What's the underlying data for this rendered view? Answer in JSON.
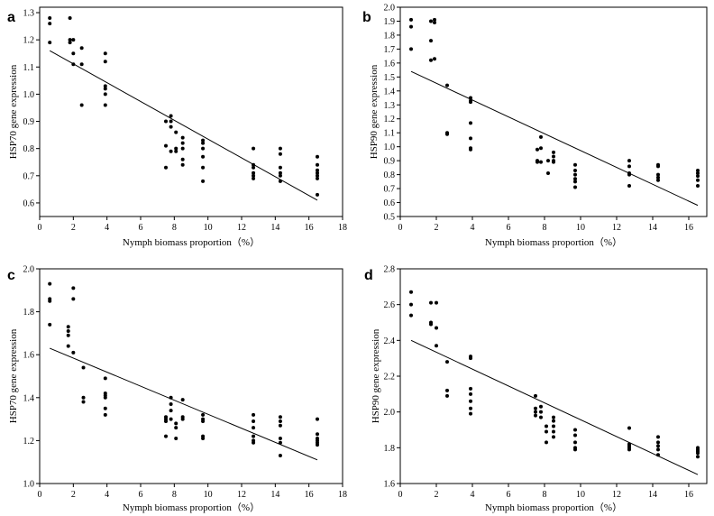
{
  "chart_data": [
    {
      "panel": "a",
      "type": "scatter",
      "xlabel": "Nymph biomass proportion（%）",
      "ylabel": "HSP70 gene expression",
      "xlim": [
        0,
        18
      ],
      "ylim": [
        0.55,
        1.32
      ],
      "xticks": [
        0,
        2,
        4,
        6,
        8,
        10,
        12,
        14,
        16,
        18
      ],
      "yticks": [
        0.6,
        0.7,
        0.8,
        0.9,
        1.0,
        1.1,
        1.2,
        1.3
      ],
      "ytick_labels": [
        "0.6",
        "0.7",
        "0.8",
        "0.9",
        "1.0",
        "1.1",
        "1.2",
        "1.3"
      ],
      "fit_line": [
        [
          0.6,
          1.16
        ],
        [
          16.5,
          0.61
        ]
      ],
      "points": [
        [
          0.6,
          1.28
        ],
        [
          0.6,
          1.26
        ],
        [
          0.6,
          1.19
        ],
        [
          1.8,
          1.28
        ],
        [
          1.8,
          1.2
        ],
        [
          1.8,
          1.19
        ],
        [
          2.0,
          1.2
        ],
        [
          2.0,
          1.15
        ],
        [
          2.0,
          1.11
        ],
        [
          2.5,
          1.17
        ],
        [
          2.5,
          1.11
        ],
        [
          2.5,
          0.96
        ],
        [
          3.9,
          1.15
        ],
        [
          3.9,
          1.12
        ],
        [
          3.9,
          1.03
        ],
        [
          3.9,
          1.02
        ],
        [
          3.9,
          1.0
        ],
        [
          3.9,
          0.96
        ],
        [
          7.5,
          0.9
        ],
        [
          7.5,
          0.81
        ],
        [
          7.5,
          0.73
        ],
        [
          7.8,
          0.92
        ],
        [
          7.8,
          0.9
        ],
        [
          7.8,
          0.88
        ],
        [
          7.8,
          0.79
        ],
        [
          8.1,
          0.86
        ],
        [
          8.1,
          0.8
        ],
        [
          8.1,
          0.79
        ],
        [
          8.5,
          0.84
        ],
        [
          8.5,
          0.82
        ],
        [
          8.5,
          0.8
        ],
        [
          8.5,
          0.76
        ],
        [
          8.5,
          0.74
        ],
        [
          9.7,
          0.83
        ],
        [
          9.7,
          0.82
        ],
        [
          9.7,
          0.8
        ],
        [
          9.7,
          0.77
        ],
        [
          9.7,
          0.73
        ],
        [
          9.7,
          0.68
        ],
        [
          12.7,
          0.8
        ],
        [
          12.7,
          0.74
        ],
        [
          12.7,
          0.73
        ],
        [
          12.7,
          0.71
        ],
        [
          12.7,
          0.7
        ],
        [
          12.7,
          0.69
        ],
        [
          14.3,
          0.8
        ],
        [
          14.3,
          0.78
        ],
        [
          14.3,
          0.73
        ],
        [
          14.3,
          0.71
        ],
        [
          14.3,
          0.7
        ],
        [
          14.3,
          0.68
        ],
        [
          16.5,
          0.77
        ],
        [
          16.5,
          0.74
        ],
        [
          16.5,
          0.72
        ],
        [
          16.5,
          0.71
        ],
        [
          16.5,
          0.7
        ],
        [
          16.5,
          0.69
        ],
        [
          16.5,
          0.63
        ]
      ]
    },
    {
      "panel": "b",
      "type": "scatter",
      "xlabel": "Nymph biomass proportion（%）",
      "ylabel": "HSP90 gene expression",
      "xlim": [
        0,
        17
      ],
      "ylim": [
        0.5,
        2.0
      ],
      "xticks": [
        0,
        2,
        4,
        6,
        8,
        10,
        12,
        14,
        16
      ],
      "yticks": [
        0.5,
        0.6,
        0.7,
        0.8,
        0.9,
        1.0,
        1.1,
        1.2,
        1.3,
        1.4,
        1.5,
        1.6,
        1.7,
        1.8,
        1.9,
        2.0
      ],
      "ytick_labels": [
        "0.5",
        "0.6",
        "0.7",
        "0.8",
        "0.9",
        "1.0",
        "1.1",
        "1.2",
        "1.3",
        "1.4",
        "1.5",
        "1.6",
        "1.7",
        "1.8",
        "1.9",
        "2.0"
      ],
      "fit_line": [
        [
          0.6,
          1.54
        ],
        [
          16.5,
          0.58
        ]
      ],
      "points": [
        [
          0.6,
          1.91
        ],
        [
          0.6,
          1.86
        ],
        [
          0.6,
          1.7
        ],
        [
          1.7,
          1.9
        ],
        [
          1.7,
          1.76
        ],
        [
          1.7,
          1.62
        ],
        [
          1.9,
          1.91
        ],
        [
          1.9,
          1.89
        ],
        [
          1.9,
          1.63
        ],
        [
          2.6,
          1.44
        ],
        [
          2.6,
          1.1
        ],
        [
          2.6,
          1.09
        ],
        [
          3.9,
          1.35
        ],
        [
          3.9,
          1.33
        ],
        [
          3.9,
          1.32
        ],
        [
          3.9,
          1.17
        ],
        [
          3.9,
          1.06
        ],
        [
          3.9,
          0.99
        ],
        [
          3.9,
          0.98
        ],
        [
          7.6,
          0.98
        ],
        [
          7.6,
          0.9
        ],
        [
          7.6,
          0.89
        ],
        [
          7.8,
          1.07
        ],
        [
          7.8,
          0.99
        ],
        [
          7.8,
          0.89
        ],
        [
          8.2,
          0.9
        ],
        [
          8.2,
          0.81
        ],
        [
          8.5,
          0.96
        ],
        [
          8.5,
          0.93
        ],
        [
          8.5,
          0.9
        ],
        [
          8.5,
          0.89
        ],
        [
          9.7,
          0.87
        ],
        [
          9.7,
          0.83
        ],
        [
          9.7,
          0.8
        ],
        [
          9.7,
          0.77
        ],
        [
          9.7,
          0.75
        ],
        [
          9.7,
          0.71
        ],
        [
          12.7,
          0.9
        ],
        [
          12.7,
          0.86
        ],
        [
          12.7,
          0.81
        ],
        [
          12.7,
          0.8
        ],
        [
          12.7,
          0.72
        ],
        [
          14.3,
          0.87
        ],
        [
          14.3,
          0.86
        ],
        [
          14.3,
          0.8
        ],
        [
          14.3,
          0.78
        ],
        [
          14.3,
          0.76
        ],
        [
          16.5,
          0.83
        ],
        [
          16.5,
          0.81
        ],
        [
          16.5,
          0.79
        ],
        [
          16.5,
          0.76
        ],
        [
          16.5,
          0.72
        ]
      ]
    },
    {
      "panel": "c",
      "type": "scatter",
      "xlabel": "Nymph biomass proportion（%）",
      "ylabel": "HSP70 gene expression",
      "xlim": [
        0,
        18
      ],
      "ylim": [
        1.0,
        2.0
      ],
      "xticks": [
        0,
        2,
        4,
        6,
        8,
        10,
        12,
        14,
        16,
        18
      ],
      "yticks": [
        1.0,
        1.2,
        1.4,
        1.6,
        1.8,
        2.0
      ],
      "ytick_labels": [
        "1.0",
        "1.2",
        "1.4",
        "1.6",
        "1.8",
        "2.0"
      ],
      "fit_line": [
        [
          0.6,
          1.63
        ],
        [
          16.5,
          1.11
        ]
      ],
      "points": [
        [
          0.6,
          1.93
        ],
        [
          0.6,
          1.86
        ],
        [
          0.6,
          1.85
        ],
        [
          0.6,
          1.74
        ],
        [
          1.7,
          1.73
        ],
        [
          1.7,
          1.71
        ],
        [
          1.7,
          1.69
        ],
        [
          1.7,
          1.64
        ],
        [
          2.0,
          1.91
        ],
        [
          2.0,
          1.86
        ],
        [
          2.0,
          1.61
        ],
        [
          2.6,
          1.54
        ],
        [
          2.6,
          1.4
        ],
        [
          2.6,
          1.38
        ],
        [
          3.9,
          1.49
        ],
        [
          3.9,
          1.42
        ],
        [
          3.9,
          1.41
        ],
        [
          3.9,
          1.4
        ],
        [
          3.9,
          1.35
        ],
        [
          3.9,
          1.32
        ],
        [
          7.5,
          1.31
        ],
        [
          7.5,
          1.3
        ],
        [
          7.5,
          1.29
        ],
        [
          7.5,
          1.22
        ],
        [
          7.8,
          1.4
        ],
        [
          7.8,
          1.37
        ],
        [
          7.8,
          1.34
        ],
        [
          7.8,
          1.3
        ],
        [
          8.1,
          1.28
        ],
        [
          8.1,
          1.26
        ],
        [
          8.1,
          1.21
        ],
        [
          8.5,
          1.39
        ],
        [
          8.5,
          1.31
        ],
        [
          8.5,
          1.3
        ],
        [
          9.7,
          1.32
        ],
        [
          9.7,
          1.3
        ],
        [
          9.7,
          1.29
        ],
        [
          9.7,
          1.22
        ],
        [
          9.7,
          1.21
        ],
        [
          12.7,
          1.32
        ],
        [
          12.7,
          1.29
        ],
        [
          12.7,
          1.26
        ],
        [
          12.7,
          1.22
        ],
        [
          12.7,
          1.2
        ],
        [
          12.7,
          1.19
        ],
        [
          14.3,
          1.31
        ],
        [
          14.3,
          1.29
        ],
        [
          14.3,
          1.27
        ],
        [
          14.3,
          1.21
        ],
        [
          14.3,
          1.19
        ],
        [
          14.3,
          1.13
        ],
        [
          16.5,
          1.3
        ],
        [
          16.5,
          1.23
        ],
        [
          16.5,
          1.21
        ],
        [
          16.5,
          1.2
        ],
        [
          16.5,
          1.19
        ],
        [
          16.5,
          1.18
        ]
      ]
    },
    {
      "panel": "d",
      "type": "scatter",
      "xlabel": "Nymph biomass proportion（%）",
      "ylabel": "HSP90 gene expression",
      "xlim": [
        0,
        17
      ],
      "ylim": [
        1.6,
        2.8
      ],
      "xticks": [
        0,
        2,
        4,
        6,
        8,
        10,
        12,
        14,
        16
      ],
      "yticks": [
        1.6,
        1.8,
        2.0,
        2.2,
        2.4,
        2.6,
        2.8
      ],
      "ytick_labels": [
        "1.6",
        "1.8",
        "2.0",
        "2.2",
        "2.4",
        "2.6",
        "2.8"
      ],
      "fit_line": [
        [
          0.6,
          2.4
        ],
        [
          16.5,
          1.65
        ]
      ],
      "points": [
        [
          0.6,
          2.67
        ],
        [
          0.6,
          2.6
        ],
        [
          0.6,
          2.54
        ],
        [
          1.7,
          2.61
        ],
        [
          1.7,
          2.5
        ],
        [
          1.7,
          2.49
        ],
        [
          2.0,
          2.61
        ],
        [
          2.0,
          2.47
        ],
        [
          2.0,
          2.37
        ],
        [
          2.6,
          2.28
        ],
        [
          2.6,
          2.12
        ],
        [
          2.6,
          2.09
        ],
        [
          3.9,
          2.31
        ],
        [
          3.9,
          2.3
        ],
        [
          3.9,
          2.13
        ],
        [
          3.9,
          2.1
        ],
        [
          3.9,
          2.06
        ],
        [
          3.9,
          2.02
        ],
        [
          3.9,
          1.99
        ],
        [
          7.5,
          2.09
        ],
        [
          7.5,
          2.02
        ],
        [
          7.5,
          2.0
        ],
        [
          7.5,
          1.98
        ],
        [
          7.8,
          2.03
        ],
        [
          7.8,
          2.0
        ],
        [
          7.8,
          1.97
        ],
        [
          8.1,
          1.92
        ],
        [
          8.1,
          1.89
        ],
        [
          8.1,
          1.83
        ],
        [
          8.5,
          1.97
        ],
        [
          8.5,
          1.95
        ],
        [
          8.5,
          1.92
        ],
        [
          8.5,
          1.89
        ],
        [
          8.5,
          1.86
        ],
        [
          9.7,
          1.9
        ],
        [
          9.7,
          1.87
        ],
        [
          9.7,
          1.83
        ],
        [
          9.7,
          1.8
        ],
        [
          9.7,
          1.79
        ],
        [
          12.7,
          1.91
        ],
        [
          12.7,
          1.82
        ],
        [
          12.7,
          1.81
        ],
        [
          12.7,
          1.8
        ],
        [
          12.7,
          1.79
        ],
        [
          14.3,
          1.86
        ],
        [
          14.3,
          1.83
        ],
        [
          14.3,
          1.81
        ],
        [
          14.3,
          1.79
        ],
        [
          14.3,
          1.76
        ],
        [
          16.5,
          1.8
        ],
        [
          16.5,
          1.79
        ],
        [
          16.5,
          1.78
        ],
        [
          16.5,
          1.77
        ],
        [
          16.5,
          1.75
        ]
      ]
    }
  ]
}
